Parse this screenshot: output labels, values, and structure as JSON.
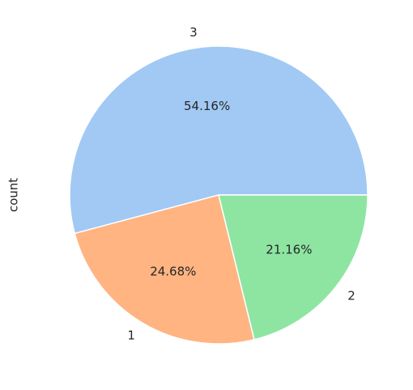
{
  "chart_data": {
    "type": "pie",
    "y_label": "count",
    "categories": [
      "3",
      "1",
      "2"
    ],
    "values": [
      54.16,
      24.68,
      21.16
    ],
    "value_labels": [
      "54.16%",
      "24.68%",
      "21.16%"
    ],
    "colors": [
      "#a1c9f4",
      "#ffb482",
      "#8de5a1"
    ]
  }
}
